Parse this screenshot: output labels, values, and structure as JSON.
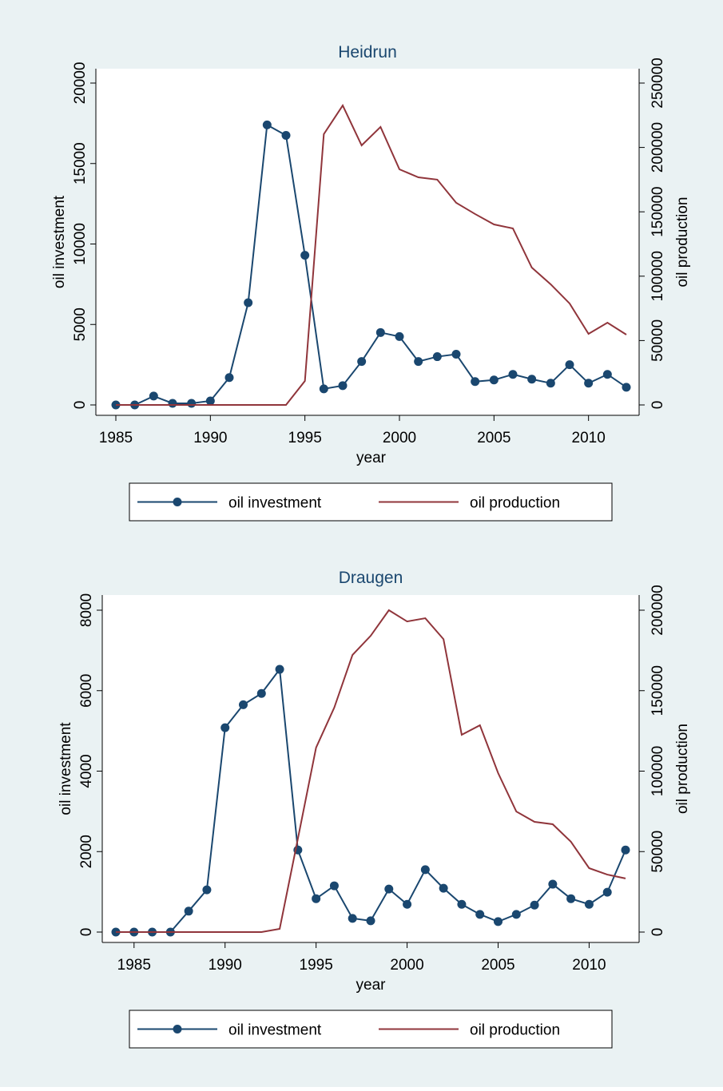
{
  "chart_data": [
    {
      "type": "line",
      "title": "Heidrun",
      "xlabel": "year",
      "ylabel": "oil investment",
      "y2label": "oil production",
      "x": [
        1985,
        1986,
        1987,
        1988,
        1989,
        1990,
        1991,
        1992,
        1993,
        1994,
        1995,
        1996,
        1997,
        1998,
        1999,
        2000,
        2001,
        2002,
        2003,
        2004,
        2005,
        2006,
        2007,
        2008,
        2009,
        2010,
        2011,
        2012
      ],
      "series": [
        {
          "name": "oil investment",
          "color": "#1a476f",
          "marker": "circle",
          "values": [
            0,
            0,
            550,
            100,
            100,
            250,
            1700,
            6350,
            17400,
            16750,
            9300,
            1000,
            1200,
            2700,
            4500,
            4250,
            2700,
            3000,
            3150,
            1450,
            1550,
            1900,
            1600,
            1350,
            2500,
            1350,
            1900,
            1100
          ]
        },
        {
          "name": "oil production",
          "color": "#90353b",
          "axis": "y2",
          "values": [
            0,
            0,
            0,
            0,
            0,
            0,
            0,
            0,
            0,
            0,
            18600,
            210300,
            232600,
            201600,
            215900,
            183000,
            176800,
            175000,
            157000,
            148300,
            140200,
            137100,
            106700,
            93700,
            78800,
            55200,
            63900,
            54600
          ]
        }
      ],
      "xlim": [
        1985,
        2012
      ],
      "xticks": [
        1985,
        1990,
        1995,
        2000,
        2005,
        2010
      ],
      "ylim": [
        0,
        20000
      ],
      "yticks": [
        0,
        5000,
        10000,
        15000,
        20000
      ],
      "y2lim": [
        0,
        250000
      ],
      "y2ticks": [
        0,
        50000,
        100000,
        150000,
        200000,
        250000
      ],
      "grid": false,
      "legend": "bottom"
    },
    {
      "type": "line",
      "title": "Draugen",
      "xlabel": "year",
      "ylabel": "oil investment",
      "y2label": "oil production",
      "x": [
        1984,
        1985,
        1986,
        1987,
        1988,
        1989,
        1990,
        1991,
        1992,
        1993,
        1994,
        1995,
        1996,
        1997,
        1998,
        1999,
        2000,
        2001,
        2002,
        2003,
        2004,
        2005,
        2006,
        2007,
        2008,
        2009,
        2010,
        2011,
        2012
      ],
      "series": [
        {
          "name": "oil investment",
          "color": "#1a476f",
          "marker": "circle",
          "values": [
            0,
            0,
            0,
            0,
            520,
            1050,
            5080,
            5650,
            5930,
            6530,
            2040,
            830,
            1150,
            340,
            280,
            1070,
            690,
            1550,
            1090,
            690,
            440,
            260,
            440,
            670,
            1190,
            830,
            690,
            990,
            2040
          ]
        },
        {
          "name": "oil production",
          "color": "#90353b",
          "axis": "y2",
          "values": [
            0,
            0,
            0,
            0,
            0,
            0,
            0,
            0,
            0,
            2000,
            58000,
            114600,
            139500,
            172200,
            184100,
            200000,
            193000,
            195000,
            182000,
            122600,
            128500,
            98800,
            74900,
            68500,
            67000,
            56100,
            39700,
            35700,
            33300
          ]
        }
      ],
      "xlim": [
        1984,
        2012
      ],
      "xticks": [
        1985,
        1990,
        1995,
        2000,
        2005,
        2010
      ],
      "ylim": [
        0,
        8000
      ],
      "yticks": [
        0,
        2000,
        4000,
        6000,
        8000
      ],
      "y2lim": [
        0,
        200000
      ],
      "y2ticks": [
        0,
        50000,
        100000,
        150000,
        200000
      ],
      "grid": false,
      "legend": "bottom"
    }
  ]
}
